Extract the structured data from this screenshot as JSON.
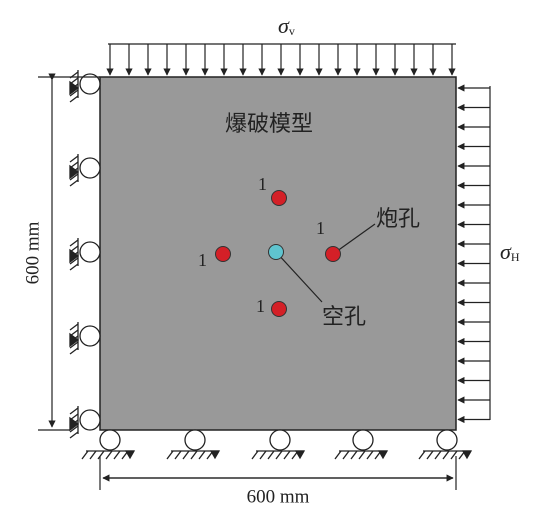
{
  "model_label": "爆破模型",
  "blast_hole_label": "炮孔",
  "empty_hole_label": "空孔",
  "hole_numbers": [
    "1",
    "1",
    "1",
    "1"
  ],
  "vertical_stress": {
    "symbol": "σ",
    "subscript": "v"
  },
  "horizontal_stress": {
    "symbol": "σ",
    "subscript": "H"
  },
  "height_dimension": "600 mm",
  "width_dimension": "600 mm"
}
